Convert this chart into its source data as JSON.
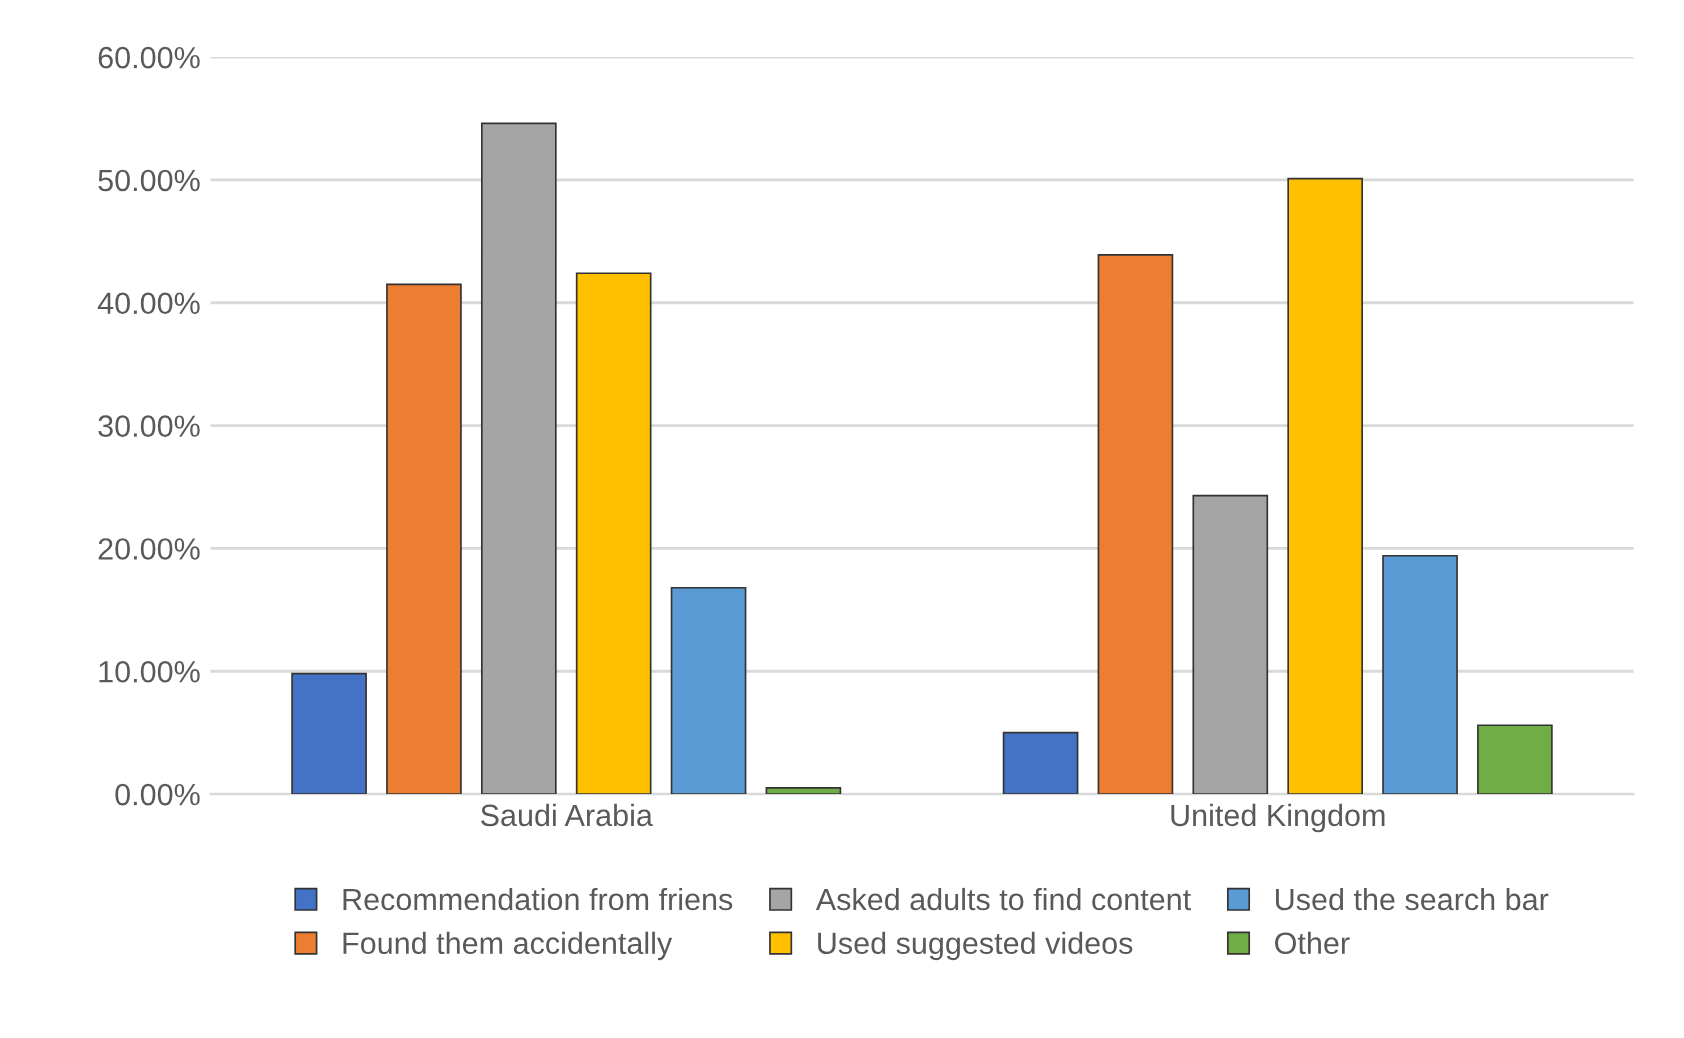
{
  "chart_data": {
    "type": "bar",
    "categories": [
      "Saudi Arabia",
      "United Kingdom"
    ],
    "series": [
      {
        "name": "Recommendation from friens",
        "color": "#4472c4",
        "values": [
          9.8,
          5.0
        ]
      },
      {
        "name": "Found them accidentally",
        "color": "#ed7d31",
        "values": [
          41.5,
          43.9
        ]
      },
      {
        "name": "Asked adults to find content",
        "color": "#a5a5a5",
        "values": [
          54.6,
          24.3
        ]
      },
      {
        "name": "Used suggested videos",
        "color": "#ffc000",
        "values": [
          42.4,
          50.1
        ]
      },
      {
        "name": "Used the search bar",
        "color": "#5b9bd5",
        "values": [
          16.8,
          19.4
        ]
      },
      {
        "name": "Other",
        "color": "#70ad47",
        "values": [
          0.5,
          5.6
        ]
      }
    ],
    "ylim": [
      0,
      60
    ],
    "yticks": [
      {
        "value": 0,
        "label": "0.00%"
      },
      {
        "value": 10,
        "label": "10.00%"
      },
      {
        "value": 20,
        "label": "20.00%"
      },
      {
        "value": 30,
        "label": "30.00%"
      },
      {
        "value": 40,
        "label": "40.00%"
      },
      {
        "value": 50,
        "label": "50.00%"
      },
      {
        "value": 60,
        "label": "60.00%"
      }
    ],
    "grid": "y",
    "legend": "bottom"
  }
}
